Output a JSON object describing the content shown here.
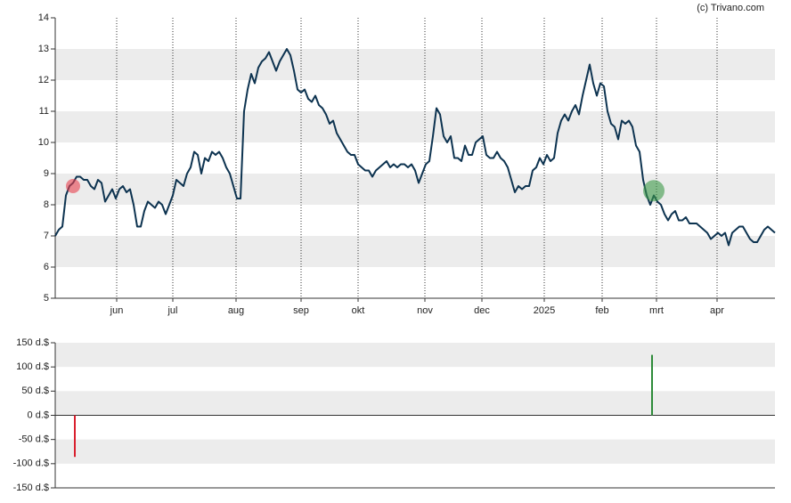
{
  "credit": "(c) Trivano.com",
  "chart_data": [
    {
      "type": "line",
      "series": [
        {
          "color": "#0d3350",
          "values": [
            7.0,
            7.2,
            7.3,
            8.3,
            8.6,
            8.7,
            8.9,
            8.9,
            8.8,
            8.8,
            8.6,
            8.5,
            8.8,
            8.7,
            8.1,
            8.3,
            8.5,
            8.2,
            8.5,
            8.6,
            8.4,
            8.5,
            8.0,
            7.3,
            7.3,
            7.8,
            8.1,
            8.0,
            7.9,
            8.1,
            8.0,
            7.7,
            8.0,
            8.3,
            8.8,
            8.7,
            8.6,
            9.0,
            9.2,
            9.7,
            9.6,
            9.0,
            9.5,
            9.4,
            9.7,
            9.6,
            9.7,
            9.5,
            9.2,
            9.0,
            8.6,
            8.2,
            8.2,
            11.0,
            11.7,
            12.2,
            11.9,
            12.4,
            12.6,
            12.7,
            12.9,
            12.6,
            12.3,
            12.6,
            12.8,
            13.0,
            12.8,
            12.3,
            11.7,
            11.6,
            11.7,
            11.4,
            11.3,
            11.5,
            11.2,
            11.1,
            10.9,
            10.6,
            10.7,
            10.3,
            10.1,
            9.9,
            9.7,
            9.6,
            9.6,
            9.3,
            9.2,
            9.1,
            9.1,
            8.9,
            9.1,
            9.2,
            9.3,
            9.4,
            9.2,
            9.3,
            9.2,
            9.3,
            9.3,
            9.2,
            9.3,
            9.1,
            8.7,
            9.0,
            9.3,
            9.4,
            10.2,
            11.1,
            10.9,
            10.2,
            10.0,
            10.2,
            9.5,
            9.5,
            9.4,
            9.9,
            9.6,
            9.6,
            10.0,
            10.1,
            10.2,
            9.6,
            9.5,
            9.5,
            9.7,
            9.5,
            9.4,
            9.2,
            8.8,
            8.4,
            8.6,
            8.5,
            8.6,
            8.6,
            9.1,
            9.2,
            9.5,
            9.3,
            9.6,
            9.4,
            9.5,
            10.3,
            10.7,
            10.9,
            10.7,
            11.0,
            11.2,
            10.9,
            11.5,
            12.0,
            12.5,
            11.9,
            11.5,
            11.9,
            11.8,
            11.0,
            10.6,
            10.5,
            10.1,
            10.7,
            10.6,
            10.7,
            10.5,
            9.9,
            9.7,
            8.8,
            8.3,
            8.0,
            8.3,
            8.1,
            8.0,
            7.7,
            7.5,
            7.7,
            7.8,
            7.5,
            7.5,
            7.6,
            7.4,
            7.4,
            7.4,
            7.3,
            7.2,
            7.1,
            6.9,
            7.0,
            7.1,
            7.0,
            7.1,
            6.7,
            7.1,
            7.2,
            7.3,
            7.3,
            7.1,
            6.9,
            6.8,
            6.8,
            7.0,
            7.2,
            7.3,
            7.2,
            7.1
          ]
        }
      ],
      "markers": [
        {
          "x": 5,
          "value": 8.6,
          "color": "#e8414f"
        },
        {
          "x": 168,
          "value": 8.45,
          "color": "#3c9a48"
        }
      ],
      "xlim": [
        0,
        202
      ],
      "xticks": [
        {
          "value": 17.25,
          "label": "jun"
        },
        {
          "value": 33,
          "label": "jul"
        },
        {
          "value": 50.75,
          "label": "aug"
        },
        {
          "value": 69,
          "label": "sep"
        },
        {
          "value": 85,
          "label": "okt"
        },
        {
          "value": 103.75,
          "label": "nov"
        },
        {
          "value": 119.75,
          "label": "dec"
        },
        {
          "value": 137.25,
          "label": "2025"
        },
        {
          "value": 153.5,
          "label": "feb"
        },
        {
          "value": 168.75,
          "label": "mrt"
        },
        {
          "value": 185.75,
          "label": "apr"
        }
      ],
      "ylim": [
        5,
        14
      ],
      "yticks": [
        5,
        6,
        7,
        8,
        9,
        10,
        11,
        12,
        13,
        14
      ],
      "grid": true
    },
    {
      "type": "bar",
      "x": [
        5.5,
        167.5
      ],
      "values": [
        -86,
        125
      ],
      "colors": [
        "#d9202e",
        "#2e8b3a"
      ],
      "xlim": [
        0,
        202
      ],
      "ylim": [
        -150,
        150
      ],
      "yticks": [
        {
          "value": -150,
          "label": "-150 d.$"
        },
        {
          "value": -100,
          "label": "-100 d.$"
        },
        {
          "value": -50,
          "label": "-50 d.$"
        },
        {
          "value": 0,
          "label": "0 d.$"
        },
        {
          "value": 50,
          "label": "50 d.$"
        },
        {
          "value": 100,
          "label": "100 d.$"
        },
        {
          "value": 150,
          "label": "150 d.$"
        }
      ]
    }
  ]
}
